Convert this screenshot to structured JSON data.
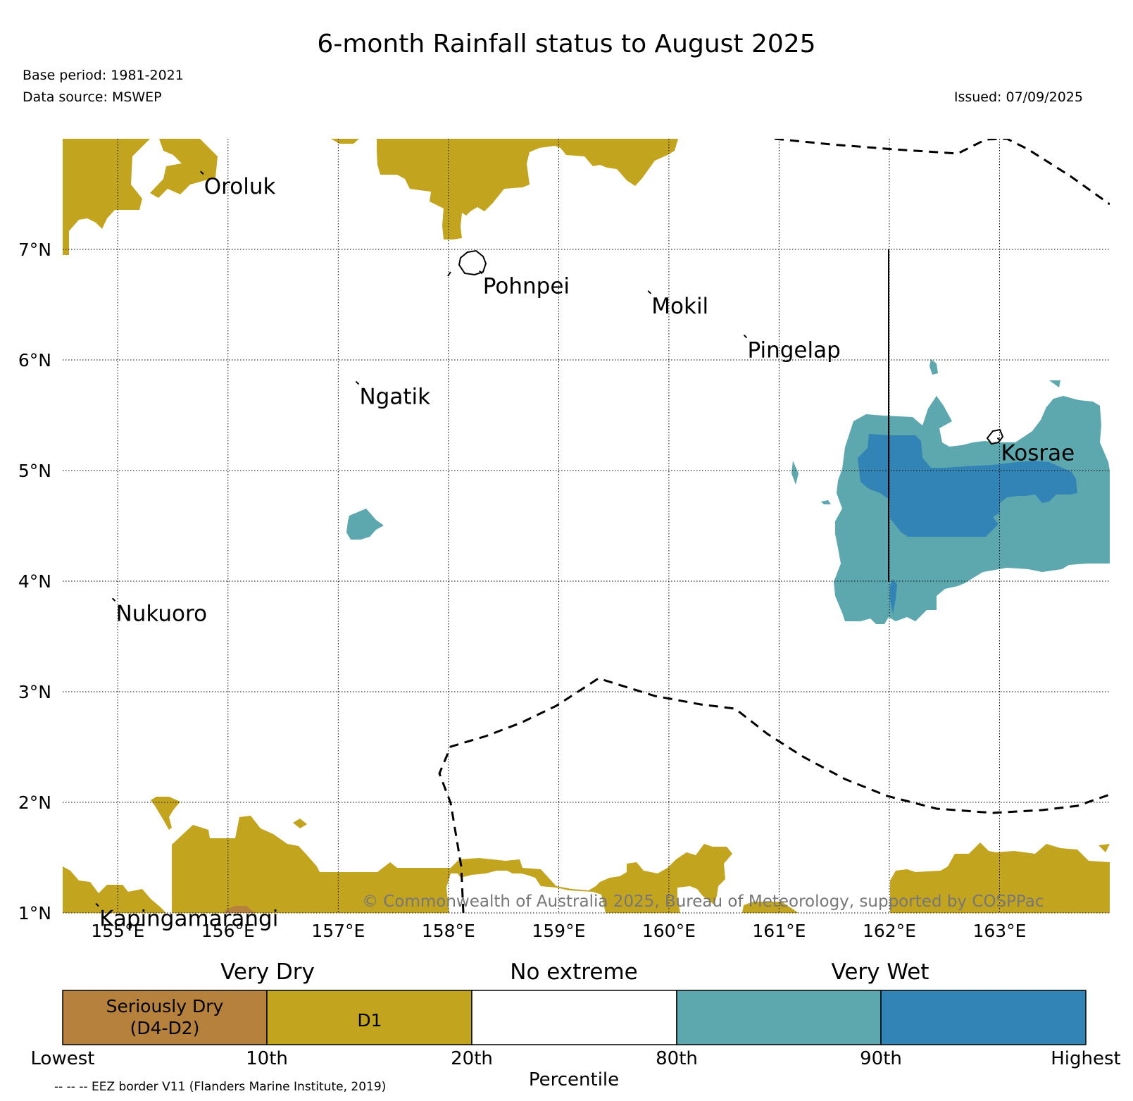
{
  "title": "6-month Rainfall status to August 2025",
  "base_period": "Base period: 1981-2021",
  "data_source": "Data source: MSWEP",
  "issued": "Issued: 07/09/2025",
  "map": {
    "lon_range": [
      154.5,
      164.0
    ],
    "lat_range": [
      1.0,
      8.0
    ],
    "x_ticks": [
      {
        "value": 155,
        "label": "155°E"
      },
      {
        "value": 156,
        "label": "156°E"
      },
      {
        "value": 157,
        "label": "157°E"
      },
      {
        "value": 158,
        "label": "158°E"
      },
      {
        "value": 159,
        "label": "159°E"
      },
      {
        "value": 160,
        "label": "160°E"
      },
      {
        "value": 161,
        "label": "161°E"
      },
      {
        "value": 162,
        "label": "162°E"
      },
      {
        "value": 163,
        "label": "163°E"
      }
    ],
    "y_ticks": [
      {
        "value": 1,
        "label": "1°N"
      },
      {
        "value": 2,
        "label": "2°N"
      },
      {
        "value": 3,
        "label": "3°N"
      },
      {
        "value": 4,
        "label": "4°N"
      },
      {
        "value": 5,
        "label": "5°N"
      },
      {
        "value": 6,
        "label": "6°N"
      },
      {
        "value": 7,
        "label": "7°N"
      }
    ],
    "islands": [
      {
        "name": "Oroluk",
        "lon": 155.77,
        "lat": 7.68
      },
      {
        "name": "Pohnpei",
        "lon": 158.3,
        "lat": 6.78
      },
      {
        "name": "Mokil",
        "lon": 159.83,
        "lat": 6.6
      },
      {
        "name": "Pingelap",
        "lon": 160.7,
        "lat": 6.2
      },
      {
        "name": "Ngatik",
        "lon": 157.18,
        "lat": 5.78
      },
      {
        "name": "Kosrae",
        "lon": 163.0,
        "lat": 5.27
      },
      {
        "name": "Nukuoro",
        "lon": 154.97,
        "lat": 3.82
      },
      {
        "name": "Kapingamarangi",
        "lon": 154.82,
        "lat": 1.06
      }
    ],
    "copyright": "© Commonwealth of Australia 2025, Bureau of Meteorology, supported by COSPPac"
  },
  "legend": {
    "category_labels": [
      "Very Dry",
      "No extreme",
      "Very Wet"
    ],
    "bins": [
      {
        "label_line1": "Seriously Dry",
        "label_line2": "(D4-D2)",
        "color": "#b5813c"
      },
      {
        "label_line1": "D1",
        "label_line2": "",
        "color": "#c3a41f"
      },
      {
        "label_line1": "",
        "label_line2": "",
        "color": "#ffffff"
      },
      {
        "label_line1": "",
        "label_line2": "",
        "color": "#5ca8ae"
      },
      {
        "label_line1": "",
        "label_line2": "",
        "color": "#3384b6"
      }
    ],
    "ticks": [
      "Lowest",
      "10th",
      "20th",
      "80th",
      "90th",
      "Highest"
    ],
    "axis_title": "Percentile",
    "eez_note": "-- -- -- EEZ border V11 (Flanders Marine Institute, 2019)"
  },
  "colors": {
    "dry": "#c3a41f",
    "seriously_dry": "#b5813c",
    "wet": "#5ca8ae",
    "very_wet": "#3384b6"
  }
}
